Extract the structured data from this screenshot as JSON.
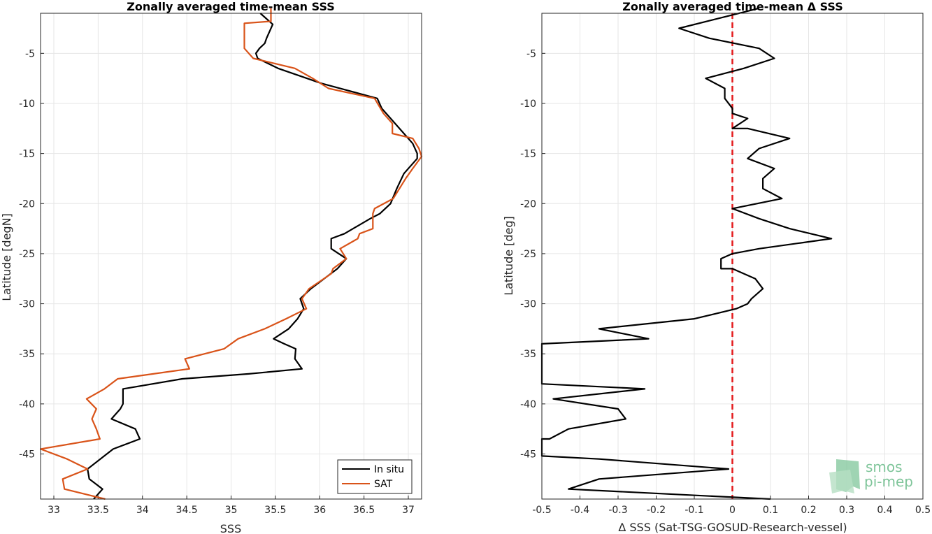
{
  "chart_data": [
    {
      "type": "line",
      "title": "Zonally averaged time-mean SSS",
      "xlabel": "SSS",
      "ylabel": "Latitude [degN]",
      "xlim": [
        32.85,
        37.15
      ],
      "ylim": [
        -49.5,
        -1.0
      ],
      "xticks": [
        33,
        33.5,
        34,
        34.5,
        35,
        35.5,
        36,
        36.5,
        37
      ],
      "xtick_labels": [
        "33",
        "33.5",
        "34",
        "34.5",
        "35",
        "35.5",
        "36",
        "36.5",
        "37"
      ],
      "yticks": [
        -5,
        -10,
        -15,
        -20,
        -25,
        -30,
        -35,
        -40,
        -45
      ],
      "ytick_labels": [
        "-5",
        "-10",
        "-15",
        "-20",
        "-25",
        "-30",
        "-35",
        "-40",
        "-45"
      ],
      "grid": true,
      "legend": "bottom-right",
      "series": [
        {
          "name": "In situ",
          "color": "#000000",
          "points": [
            [
              35.33,
              -1.0
            ],
            [
              35.47,
              -2.1
            ],
            [
              35.4,
              -3.5
            ],
            [
              35.38,
              -4.0
            ],
            [
              35.32,
              -4.5
            ],
            [
              35.28,
              -5.0
            ],
            [
              35.3,
              -5.5
            ],
            [
              35.53,
              -6.5
            ],
            [
              36.02,
              -8.0
            ],
            [
              36.65,
              -9.5
            ],
            [
              36.7,
              -10.5
            ],
            [
              36.85,
              -12.0
            ],
            [
              36.95,
              -13.0
            ],
            [
              37.05,
              -14.0
            ],
            [
              37.1,
              -15.0
            ],
            [
              37.1,
              -15.5
            ],
            [
              36.95,
              -17.0
            ],
            [
              36.87,
              -18.5
            ],
            [
              36.8,
              -20.0
            ],
            [
              36.68,
              -21.0
            ],
            [
              36.57,
              -21.5
            ],
            [
              36.28,
              -23.0
            ],
            [
              36.13,
              -23.5
            ],
            [
              36.13,
              -24.5
            ],
            [
              36.3,
              -25.5
            ],
            [
              36.2,
              -26.5
            ],
            [
              35.9,
              -28.5
            ],
            [
              35.78,
              -29.5
            ],
            [
              35.82,
              -30.5
            ],
            [
              35.75,
              -31.5
            ],
            [
              35.65,
              -32.5
            ],
            [
              35.48,
              -33.5
            ],
            [
              35.6,
              -34.0
            ],
            [
              35.73,
              -34.5
            ],
            [
              35.72,
              -35.5
            ],
            [
              35.8,
              -36.5
            ],
            [
              35.2,
              -37.0
            ],
            [
              34.45,
              -37.5
            ],
            [
              33.78,
              -38.5
            ],
            [
              33.78,
              -40.0
            ],
            [
              33.75,
              -40.5
            ],
            [
              33.65,
              -41.5
            ],
            [
              33.92,
              -42.5
            ],
            [
              33.97,
              -43.5
            ],
            [
              33.67,
              -44.5
            ],
            [
              33.38,
              -46.5
            ],
            [
              33.4,
              -47.5
            ],
            [
              33.55,
              -48.5
            ],
            [
              33.45,
              -49.5
            ]
          ]
        },
        {
          "name": "SAT",
          "color": "#d95319",
          "points": [
            [
              35.45,
              -0.5
            ],
            [
              35.45,
              -1.8
            ],
            [
              35.15,
              -2.0
            ],
            [
              35.15,
              -4.5
            ],
            [
              35.2,
              -5.0
            ],
            [
              35.25,
              -5.5
            ],
            [
              35.72,
              -6.5
            ],
            [
              35.92,
              -7.5
            ],
            [
              36.1,
              -8.5
            ],
            [
              36.62,
              -9.5
            ],
            [
              36.72,
              -11.0
            ],
            [
              36.82,
              -12.0
            ],
            [
              36.82,
              -13.0
            ],
            [
              37.05,
              -13.5
            ],
            [
              37.12,
              -14.5
            ],
            [
              37.15,
              -15.3
            ],
            [
              37.05,
              -16.5
            ],
            [
              36.97,
              -17.5
            ],
            [
              36.9,
              -18.5
            ],
            [
              36.83,
              -19.5
            ],
            [
              36.62,
              -20.5
            ],
            [
              36.6,
              -21.0
            ],
            [
              36.6,
              -22.5
            ],
            [
              36.45,
              -23.0
            ],
            [
              36.43,
              -23.5
            ],
            [
              36.23,
              -24.5
            ],
            [
              36.3,
              -25.5
            ],
            [
              36.15,
              -26.5
            ],
            [
              36.13,
              -27.0
            ],
            [
              35.88,
              -28.5
            ],
            [
              35.8,
              -29.5
            ],
            [
              35.85,
              -30.5
            ],
            [
              35.62,
              -31.5
            ],
            [
              35.38,
              -32.5
            ],
            [
              35.08,
              -33.5
            ],
            [
              34.92,
              -34.5
            ],
            [
              34.48,
              -35.5
            ],
            [
              34.53,
              -36.5
            ],
            [
              33.72,
              -37.5
            ],
            [
              33.57,
              -38.5
            ],
            [
              33.37,
              -39.5
            ],
            [
              33.48,
              -40.5
            ],
            [
              33.43,
              -41.5
            ],
            [
              33.48,
              -42.5
            ],
            [
              33.52,
              -43.5
            ],
            [
              32.85,
              -44.5
            ],
            [
              33.15,
              -45.5
            ],
            [
              33.38,
              -46.5
            ],
            [
              33.1,
              -47.5
            ],
            [
              33.12,
              -48.5
            ],
            [
              33.58,
              -49.5
            ]
          ]
        }
      ]
    },
    {
      "type": "line",
      "title": "Zonally averaged time-mean Δ SSS",
      "xlabel": "Δ SSS (Sat-TSG-GOSUD-Research-vessel)",
      "ylabel": "Latitude [deg]",
      "xlim": [
        -0.5,
        0.5
      ],
      "ylim": [
        -49.5,
        -1.0
      ],
      "xticks": [
        -0.5,
        -0.4,
        -0.3,
        -0.2,
        -0.1,
        0,
        0.1,
        0.2,
        0.3,
        0.4,
        0.5
      ],
      "xtick_labels": [
        "-0.5",
        "-0.4",
        "-0.3",
        "-0.2",
        "-0.1",
        "0",
        "0.1",
        "0.2",
        "0.3",
        "0.4",
        "0.5"
      ],
      "yticks": [
        -5,
        -10,
        -15,
        -20,
        -25,
        -30,
        -35,
        -40,
        -45
      ],
      "ytick_labels": [
        "-5",
        "-10",
        "-15",
        "-20",
        "-25",
        "-30",
        "-35",
        "-40",
        "-45"
      ],
      "grid": true,
      "reference_line": {
        "x": 0,
        "color": "#e41a1c",
        "style": "dashed"
      },
      "series": [
        {
          "color": "#000000",
          "points": [
            [
              0.07,
              -0.5
            ],
            [
              -0.14,
              -2.5
            ],
            [
              -0.06,
              -3.5
            ],
            [
              0.07,
              -4.5
            ],
            [
              0.11,
              -5.5
            ],
            [
              0.03,
              -6.5
            ],
            [
              -0.07,
              -7.5
            ],
            [
              -0.02,
              -8.5
            ],
            [
              -0.02,
              -9.5
            ],
            [
              0.0,
              -10.5
            ],
            [
              0.0,
              -11.0
            ],
            [
              0.04,
              -11.5
            ],
            [
              0.0,
              -12.5
            ],
            [
              0.04,
              -12.5
            ],
            [
              0.15,
              -13.5
            ],
            [
              0.07,
              -14.5
            ],
            [
              0.04,
              -15.5
            ],
            [
              0.11,
              -16.5
            ],
            [
              0.08,
              -17.5
            ],
            [
              0.08,
              -18.5
            ],
            [
              0.13,
              -19.5
            ],
            [
              0.0,
              -20.5
            ],
            [
              0.07,
              -21.5
            ],
            [
              0.15,
              -22.5
            ],
            [
              0.26,
              -23.5
            ],
            [
              0.07,
              -24.5
            ],
            [
              0.0,
              -25.0
            ],
            [
              -0.03,
              -25.5
            ],
            [
              -0.03,
              -26.5
            ],
            [
              0.0,
              -26.5
            ],
            [
              0.06,
              -27.5
            ],
            [
              0.08,
              -28.5
            ],
            [
              0.05,
              -29.5
            ],
            [
              0.04,
              -30.0
            ],
            [
              0.01,
              -30.5
            ],
            [
              -0.1,
              -31.5
            ],
            [
              -0.35,
              -32.5
            ],
            [
              -0.22,
              -33.5
            ],
            [
              -0.5,
              -34.0
            ],
            [
              -0.5,
              -38.0
            ],
            [
              -0.23,
              -38.5
            ],
            [
              -0.47,
              -39.5
            ],
            [
              -0.3,
              -40.5
            ],
            [
              -0.28,
              -41.5
            ],
            [
              -0.43,
              -42.5
            ],
            [
              -0.48,
              -43.5
            ],
            [
              -0.5,
              -43.5
            ],
            [
              -0.5,
              -45.2
            ],
            [
              -0.35,
              -45.5
            ],
            [
              -0.01,
              -46.5
            ],
            [
              -0.35,
              -47.5
            ],
            [
              -0.43,
              -48.5
            ],
            [
              0.1,
              -49.5
            ]
          ]
        }
      ]
    }
  ],
  "legend": {
    "items": [
      {
        "label": "In situ",
        "color": "#000000"
      },
      {
        "label": "SAT",
        "color": "#d95319"
      }
    ]
  },
  "logo": {
    "line1": "smos",
    "line2": "pi-mep"
  }
}
